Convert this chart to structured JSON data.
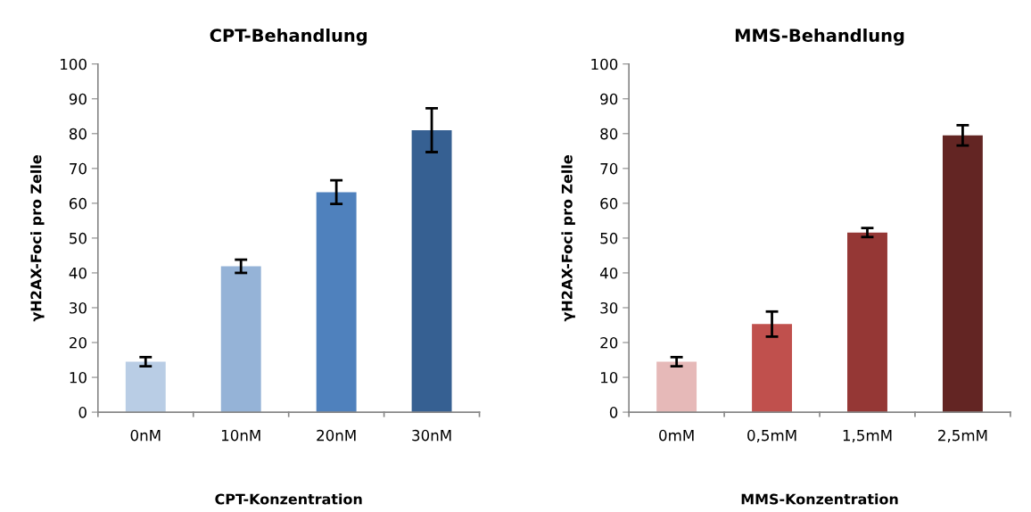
{
  "chart_data": [
    {
      "type": "bar",
      "title": "CPT-Behandlung",
      "xlabel": "CPT-Konzentration",
      "ylabel": "γH2AX-Foci pro Zelle",
      "categories": [
        "0nM",
        "10nM",
        "20nM",
        "30nM"
      ],
      "values": [
        14.5,
        41.9,
        63.2,
        81.0
      ],
      "errors": [
        1.3,
        1.9,
        3.4,
        6.3
      ],
      "colors": [
        "#b9cde5",
        "#95b3d7",
        "#4f81bd",
        "#366092"
      ],
      "ylim": [
        0,
        100
      ],
      "yticks": [
        0,
        10,
        20,
        30,
        40,
        50,
        60,
        70,
        80,
        90,
        100
      ],
      "grid": false,
      "legend": false
    },
    {
      "type": "bar",
      "title": "MMS-Behandlung",
      "xlabel": "MMS-Konzentration",
      "ylabel": "γH2AX-Foci pro Zelle",
      "categories": [
        "0mM",
        "0,5mM",
        "1,5mM",
        "2,5mM"
      ],
      "values": [
        14.5,
        25.3,
        51.6,
        79.5
      ],
      "errors": [
        1.3,
        3.6,
        1.3,
        2.9
      ],
      "colors": [
        "#e6b9b8",
        "#c0504d",
        "#953735",
        "#632523"
      ],
      "ylim": [
        0,
        100
      ],
      "yticks": [
        0,
        10,
        20,
        30,
        40,
        50,
        60,
        70,
        80,
        90,
        100
      ],
      "grid": false,
      "legend": false
    }
  ]
}
